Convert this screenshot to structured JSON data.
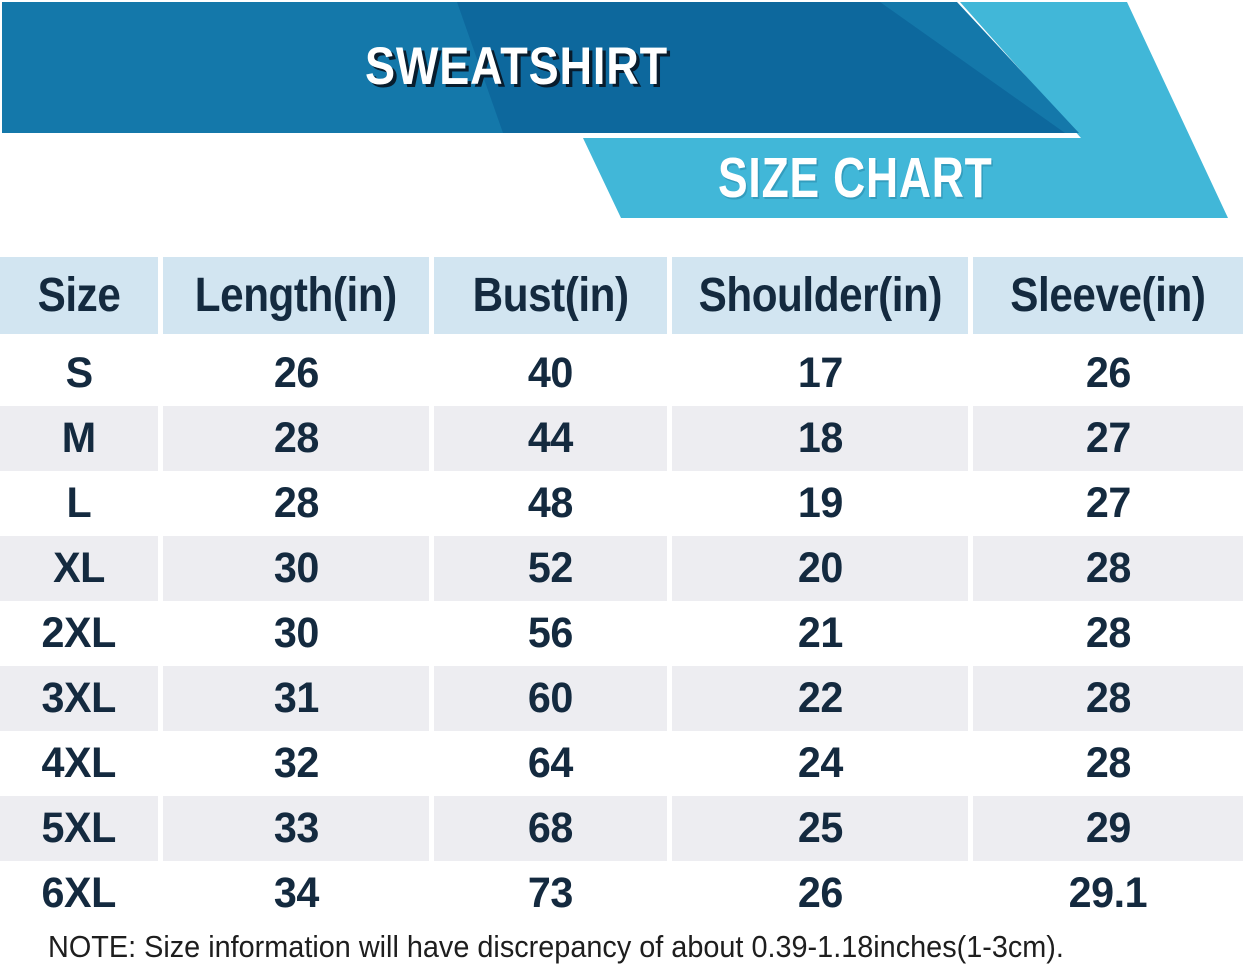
{
  "banner": {
    "product_title": "SWEATSHIRT",
    "chart_title": "SIZE CHART"
  },
  "colors": {
    "banner_blue": "#1478aa",
    "banner_dark_blue": "#0d689d",
    "banner_cyan": "#41b7d8",
    "header_bg": "#d2e5f1",
    "row_alt_bg": "#ededf1",
    "table_text": "#142a3f",
    "note_text": "#1e1e1e",
    "title_text": "#ffffff"
  },
  "note": "NOTE: Size information will have discrepancy of about 0.39-1.18inches(1-3cm).",
  "chart_data": {
    "type": "table",
    "title": "SWEATSHIRT SIZE CHART",
    "columns": [
      "Size",
      "Length(in)",
      "Bust(in)",
      "Shoulder(in)",
      "Sleeve(in)"
    ],
    "column_keys": [
      "size",
      "length",
      "bust",
      "shoulder",
      "sleeve"
    ],
    "rows": [
      [
        "S",
        "26",
        "40",
        "17",
        "26"
      ],
      [
        "M",
        "28",
        "44",
        "18",
        "27"
      ],
      [
        "L",
        "28",
        "48",
        "19",
        "27"
      ],
      [
        "XL",
        "30",
        "52",
        "20",
        "28"
      ],
      [
        "2XL",
        "30",
        "56",
        "21",
        "28"
      ],
      [
        "3XL",
        "31",
        "60",
        "22",
        "28"
      ],
      [
        "4XL",
        "32",
        "64",
        "24",
        "28"
      ],
      [
        "5XL",
        "33",
        "68",
        "25",
        "29"
      ],
      [
        "6XL",
        "34",
        "73",
        "26",
        "29.1"
      ]
    ]
  }
}
